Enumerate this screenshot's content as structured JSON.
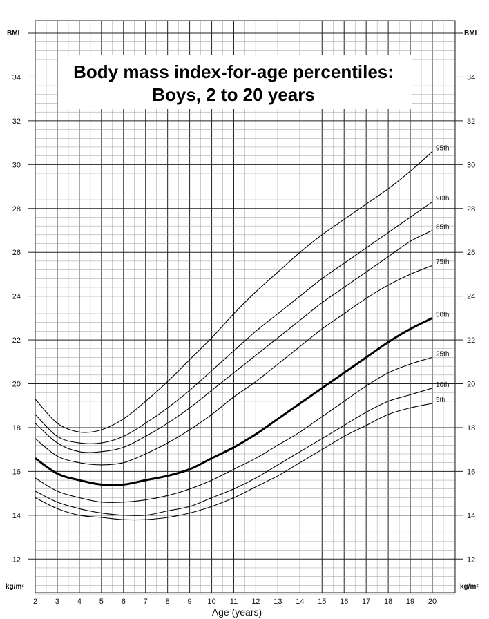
{
  "chart_data": {
    "type": "line",
    "title_lines": [
      "Body mass index-for-age percentiles:",
      "Boys, 2 to 20 years"
    ],
    "xlabel": "Age (years)",
    "y_unit_top": "BMI",
    "y_unit_bottom": "kg/m²",
    "xlim": [
      2,
      20
    ],
    "ylim": [
      10.4,
      36
    ],
    "x_ticks": [
      2,
      3,
      4,
      5,
      6,
      7,
      8,
      9,
      10,
      11,
      12,
      13,
      14,
      15,
      16,
      17,
      18,
      19,
      20
    ],
    "y_ticks": [
      12,
      14,
      16,
      18,
      20,
      22,
      24,
      26,
      28,
      30,
      32,
      34
    ],
    "grid": true,
    "x": [
      2,
      3,
      4,
      5,
      6,
      7,
      8,
      9,
      10,
      11,
      12,
      13,
      14,
      15,
      16,
      17,
      18,
      19,
      20
    ],
    "series": [
      {
        "name": "95th",
        "emphasis": false,
        "values": [
          19.3,
          18.2,
          17.8,
          17.9,
          18.4,
          19.2,
          20.1,
          21.1,
          22.1,
          23.2,
          24.2,
          25.1,
          26.0,
          26.8,
          27.5,
          28.2,
          28.9,
          29.7,
          30.6
        ]
      },
      {
        "name": "90th",
        "emphasis": false,
        "values": [
          18.6,
          17.6,
          17.3,
          17.3,
          17.6,
          18.2,
          18.9,
          19.7,
          20.6,
          21.5,
          22.4,
          23.2,
          24.0,
          24.8,
          25.5,
          26.2,
          26.9,
          27.6,
          28.3
        ]
      },
      {
        "name": "85th",
        "emphasis": false,
        "values": [
          18.2,
          17.3,
          16.9,
          16.9,
          17.1,
          17.6,
          18.2,
          18.9,
          19.7,
          20.5,
          21.3,
          22.1,
          22.9,
          23.7,
          24.4,
          25.1,
          25.8,
          26.5,
          27.0
        ]
      },
      {
        "name": "75th",
        "emphasis": false,
        "values": [
          17.5,
          16.7,
          16.4,
          16.3,
          16.4,
          16.8,
          17.3,
          17.9,
          18.6,
          19.4,
          20.1,
          20.9,
          21.7,
          22.5,
          23.2,
          23.9,
          24.5,
          25.0,
          25.4
        ]
      },
      {
        "name": "50th",
        "emphasis": true,
        "values": [
          16.6,
          15.9,
          15.6,
          15.4,
          15.4,
          15.6,
          15.8,
          16.1,
          16.6,
          17.1,
          17.7,
          18.4,
          19.1,
          19.8,
          20.5,
          21.2,
          21.9,
          22.5,
          23.0
        ]
      },
      {
        "name": "25th",
        "emphasis": false,
        "values": [
          15.7,
          15.1,
          14.8,
          14.6,
          14.6,
          14.7,
          14.9,
          15.2,
          15.6,
          16.1,
          16.6,
          17.2,
          17.8,
          18.5,
          19.2,
          19.9,
          20.5,
          20.9,
          21.2
        ]
      },
      {
        "name": "10th",
        "emphasis": false,
        "values": [
          15.1,
          14.6,
          14.3,
          14.1,
          14.0,
          14.0,
          14.2,
          14.4,
          14.8,
          15.2,
          15.7,
          16.3,
          16.9,
          17.5,
          18.1,
          18.7,
          19.2,
          19.5,
          19.8
        ]
      },
      {
        "name": "5th",
        "emphasis": false,
        "values": [
          14.8,
          14.3,
          14.0,
          13.9,
          13.8,
          13.8,
          13.9,
          14.1,
          14.4,
          14.8,
          15.3,
          15.8,
          16.4,
          17.0,
          17.6,
          18.1,
          18.6,
          18.9,
          19.1
        ]
      }
    ]
  }
}
